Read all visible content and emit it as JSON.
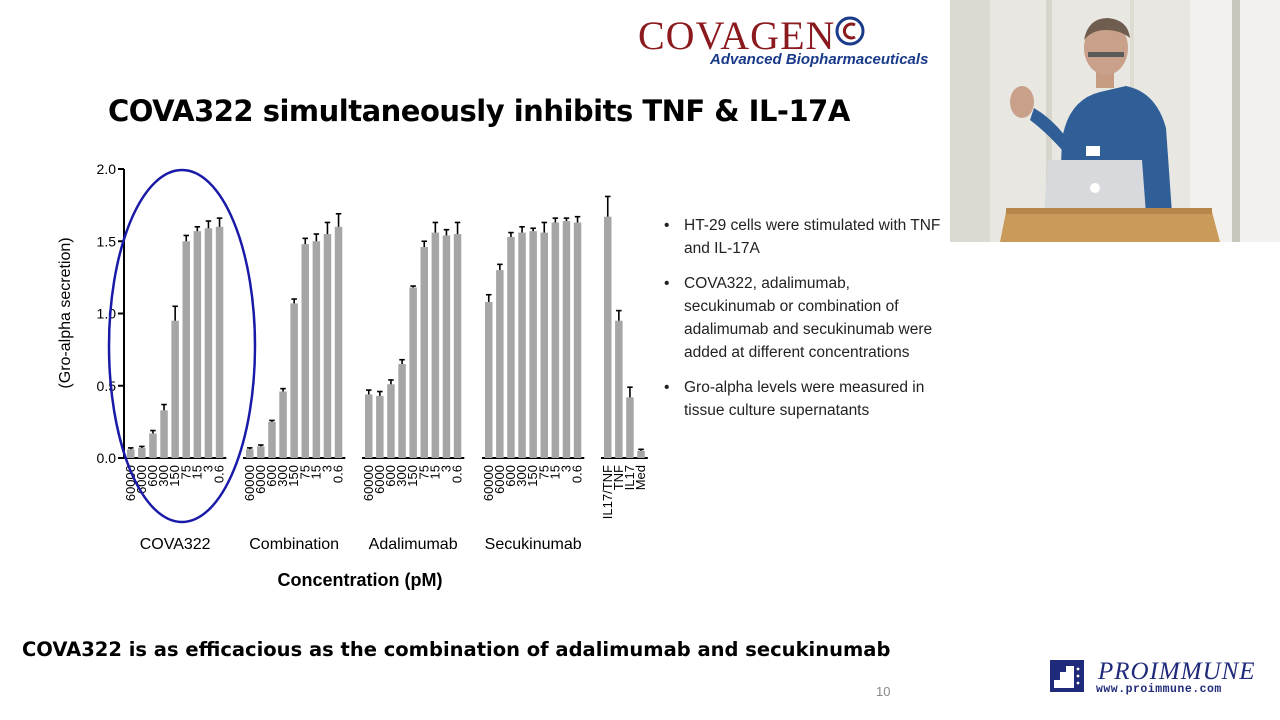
{
  "slide": {
    "title": "COVA322 simultaneously inhibits TNF & IL-17A",
    "statement": "COVA322 is as efficacious as the combination of adalimumab and secukinumab",
    "page_number": "10"
  },
  "logos": {
    "covagen_name": "COVAGEN",
    "covagen_tagline": "Advanced Biopharmaceuticals",
    "proimmune_name": "PROIMMUNE",
    "proimmune_url": "www.proimmune.com"
  },
  "bullets": [
    "HT-29 cells were stimulated with TNF and IL-17A",
    "COVA322, adalimumab, secukinumab or combination of adalimumab and secukinumab were added at different concentrations",
    "Gro-alpha levels were measured in tissue culture supernatants"
  ],
  "chart_data": {
    "type": "bar",
    "xlabel": "Concentration (pM)",
    "ylabel": "(Gro-alpha secretion)",
    "ylim": [
      0,
      2.0
    ],
    "yticks": [
      "0.0",
      "0.5",
      "1.0",
      "1.5",
      "2.0"
    ],
    "ytick_values": [
      0,
      0.5,
      1.0,
      1.5,
      2.0
    ],
    "groups": [
      {
        "name": "COVA322",
        "categories": [
          "60000",
          "6000",
          "600",
          "300",
          "150",
          "75",
          "15",
          "3",
          "0.6"
        ],
        "values": [
          0.06,
          0.07,
          0.17,
          0.33,
          0.95,
          1.5,
          1.57,
          1.59,
          1.6
        ],
        "errors": [
          0.01,
          0.01,
          0.02,
          0.04,
          0.1,
          0.04,
          0.03,
          0.05,
          0.06
        ],
        "highlighted": true
      },
      {
        "name": "Combination",
        "categories": [
          "60000",
          "6000",
          "600",
          "300",
          "150",
          "75",
          "15",
          "3",
          "0.6"
        ],
        "values": [
          0.06,
          0.08,
          0.25,
          0.46,
          1.07,
          1.48,
          1.5,
          1.55,
          1.6
        ],
        "errors": [
          0.01,
          0.01,
          0.01,
          0.02,
          0.03,
          0.04,
          0.05,
          0.08,
          0.09
        ]
      },
      {
        "name": "Adalimumab",
        "categories": [
          "60000",
          "6000",
          "600",
          "300",
          "150",
          "75",
          "15",
          "3",
          "0.6"
        ],
        "values": [
          0.44,
          0.43,
          0.51,
          0.65,
          1.18,
          1.46,
          1.56,
          1.54,
          1.55
        ],
        "errors": [
          0.03,
          0.03,
          0.03,
          0.03,
          0.01,
          0.04,
          0.07,
          0.04,
          0.08
        ]
      },
      {
        "name": "Secukinumab",
        "categories": [
          "60000",
          "6000",
          "600",
          "300",
          "150",
          "75",
          "15",
          "3",
          "0.6"
        ],
        "values": [
          1.08,
          1.3,
          1.53,
          1.56,
          1.57,
          1.56,
          1.63,
          1.64,
          1.63
        ],
        "errors": [
          0.05,
          0.04,
          0.03,
          0.04,
          0.02,
          0.07,
          0.03,
          0.02,
          0.04
        ]
      },
      {
        "name": "",
        "categories": [
          "IL17/TNF",
          "TNF",
          "IL17",
          "Med"
        ],
        "values": [
          1.67,
          0.95,
          0.42,
          0.05
        ],
        "errors": [
          0.14,
          0.07,
          0.07,
          0.01
        ]
      }
    ],
    "bar_color": "#a6a6a6",
    "highlight_color": "#1a1aa8",
    "grid": false
  }
}
